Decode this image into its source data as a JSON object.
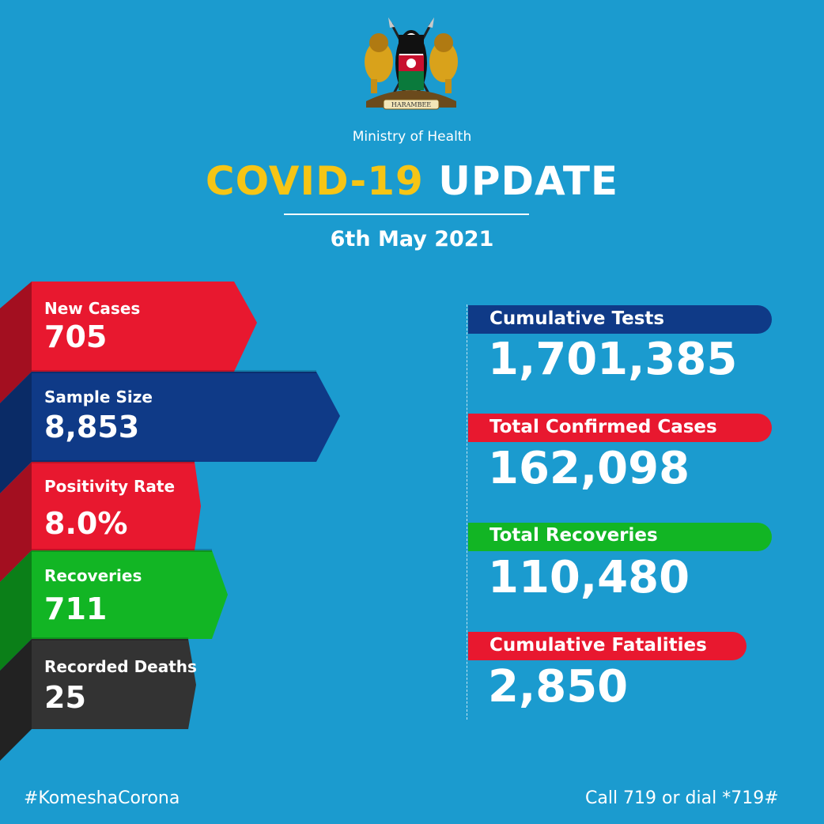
{
  "header": {
    "emblem_motto": "HARAMBEE",
    "ministry": "Ministry of Health",
    "title_part1": "COVID-19",
    "title_part2": "UPDATE",
    "date": "6th May 2021"
  },
  "daily_stats": [
    {
      "label": "New Cases",
      "value": "705",
      "color": "#e8182f"
    },
    {
      "label": "Sample Size",
      "value": "8,853",
      "color": "#0f3a87"
    },
    {
      "label": "Positivity Rate",
      "value": "8.0%",
      "color": "#e8182f"
    },
    {
      "label": "Recoveries",
      "value": "711",
      "color": "#12b524"
    },
    {
      "label": "Recorded Deaths",
      "value": "25",
      "color": "#333333"
    }
  ],
  "cumulative_stats": [
    {
      "label": "Cumulative Tests",
      "value": "1,701,385",
      "color": "#0f3a87"
    },
    {
      "label": "Total Confirmed Cases",
      "value": "162,098",
      "color": "#e8182f"
    },
    {
      "label": "Total Recoveries",
      "value": "110,480",
      "color": "#12b524"
    },
    {
      "label": "Cumulative Fatalities",
      "value": "2,850",
      "color": "#e8182f"
    }
  ],
  "footer": {
    "hashtag": "#KomeshaCorona",
    "hotline": "Call 719 or dial *719#"
  },
  "colors": {
    "background": "#1b9bcf",
    "accent_yellow": "#f6c515",
    "red": "#e8182f",
    "navy": "#0f3a87",
    "green": "#12b524",
    "dark_grey": "#333333"
  }
}
